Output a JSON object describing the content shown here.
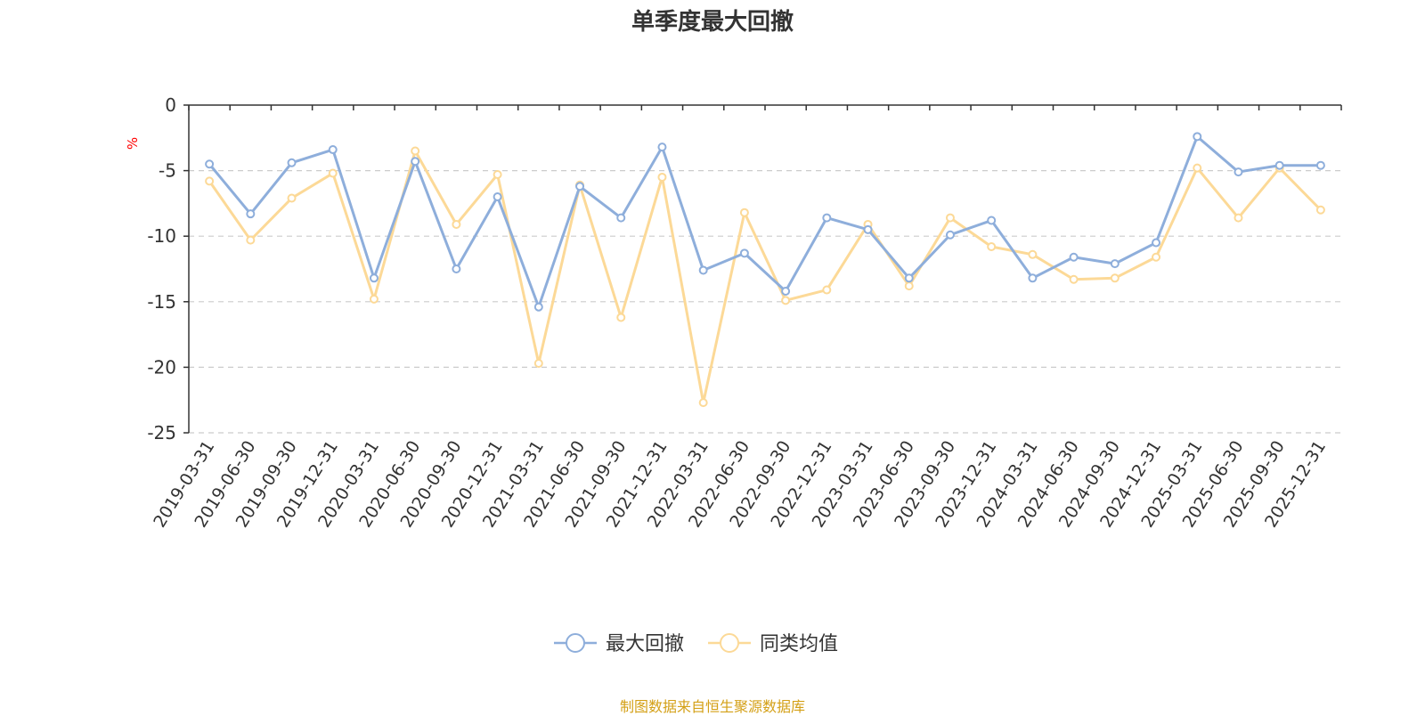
{
  "chart_data": {
    "type": "line",
    "title": "单季度最大回撤",
    "ylabel": "%",
    "ylim": [
      -25,
      0
    ],
    "yticks": [
      0,
      -5,
      -10,
      -15,
      -20,
      -25
    ],
    "grid": true,
    "legend_position": "bottom",
    "categories": [
      "2019-03-31",
      "2019-06-30",
      "2019-09-30",
      "2019-12-31",
      "2020-03-31",
      "2020-06-30",
      "2020-09-30",
      "2020-12-31",
      "2021-03-31",
      "2021-06-30",
      "2021-09-30",
      "2021-12-31",
      "2022-03-31",
      "2022-06-30",
      "2022-09-30",
      "2022-12-31",
      "2023-03-31",
      "2023-06-30",
      "2023-09-30",
      "2023-12-31",
      "2024-03-31",
      "2024-06-30",
      "2024-09-30",
      "2024-12-31",
      "2025-03-31",
      "2025-06-30",
      "2025-09-30",
      "2025-12-31"
    ],
    "series": [
      {
        "name": "最大回撤",
        "color": "#8eaedb",
        "values": [
          -4.5,
          -8.3,
          -4.4,
          -3.4,
          -13.2,
          -4.3,
          -12.5,
          -7.0,
          -15.4,
          -6.2,
          -8.6,
          -3.2,
          -12.6,
          -11.3,
          -14.2,
          -8.6,
          -9.5,
          -13.2,
          -9.9,
          -8.8,
          -13.2,
          -11.6,
          -12.1,
          -10.5,
          -2.4,
          -5.1,
          -4.6,
          -4.6
        ]
      },
      {
        "name": "同类均值",
        "color": "#fcd997",
        "values": [
          -5.8,
          -10.3,
          -7.1,
          -5.2,
          -14.8,
          -3.5,
          -9.1,
          -5.3,
          -19.7,
          -6.1,
          -16.2,
          -5.5,
          -22.7,
          -8.2,
          -14.9,
          -14.1,
          -9.1,
          -13.8,
          -8.6,
          -10.8,
          -11.4,
          -13.3,
          -13.2,
          -11.6,
          -4.8,
          -8.6,
          -4.8,
          -8.0
        ]
      }
    ]
  },
  "footer": {
    "source": "制图数据来自恒生聚源数据库"
  }
}
